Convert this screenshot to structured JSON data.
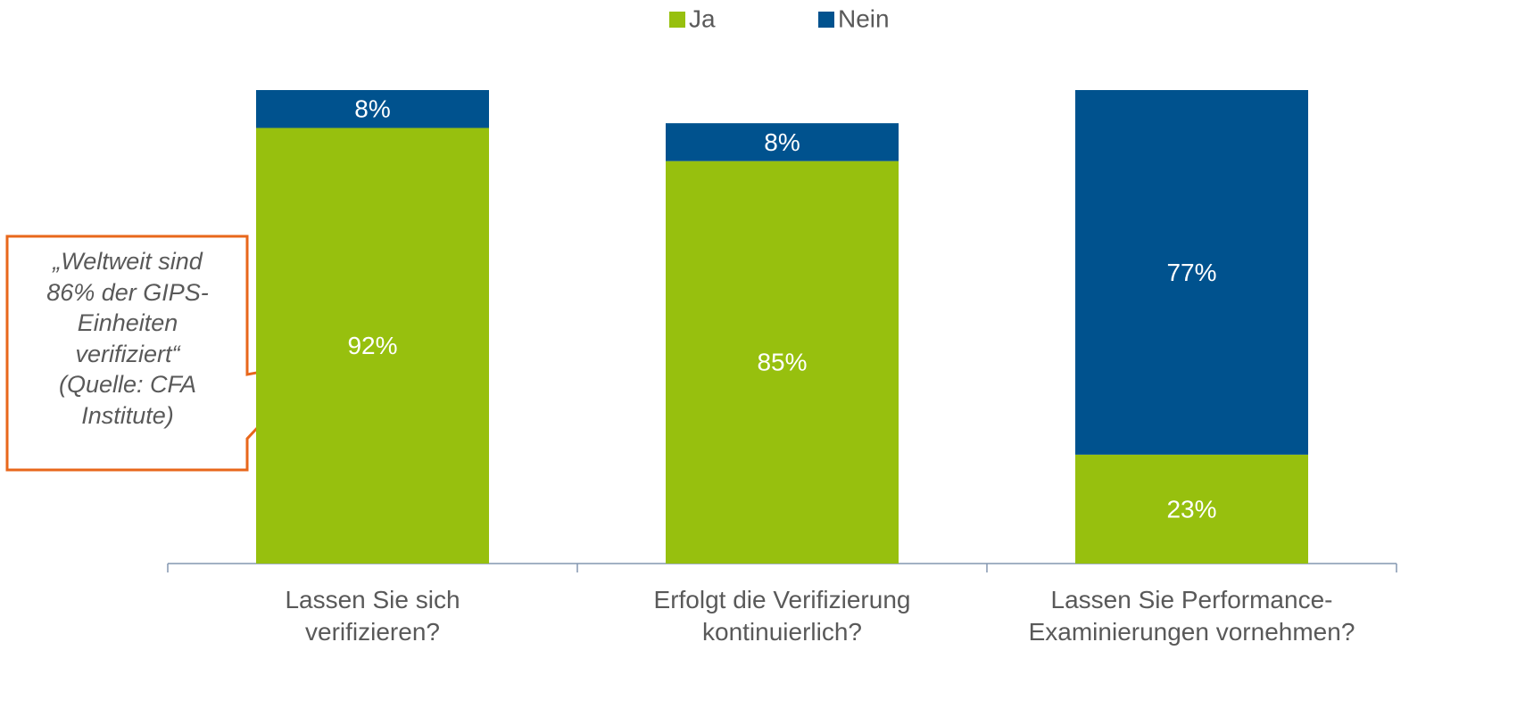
{
  "chart_data": {
    "type": "stacked_bar",
    "categories": [
      "Lassen Sie sich\nverifizieren?",
      "Erfolgt die Verifizierung\nkontinuierlich?",
      "Lassen Sie Performance-\nExaminierungen vornehmen?"
    ],
    "series": [
      {
        "name": "Ja",
        "color": "#97c00e",
        "values": [
          92,
          85,
          23
        ],
        "value_labels": [
          "92%",
          "85%",
          "23%"
        ]
      },
      {
        "name": "Nein",
        "color": "#00528e",
        "values": [
          8,
          8,
          77
        ],
        "value_labels": [
          "8%",
          "8%",
          "77%"
        ]
      }
    ],
    "ylim": [
      0,
      100
    ],
    "legend": "top",
    "annotations": [
      {
        "text": "„Weltweit sind\n86% der GIPS-\nEinheiten\nverifiziert“\n(Quelle: CFA\nInstitute)",
        "border_color": "#e8671b"
      }
    ]
  }
}
